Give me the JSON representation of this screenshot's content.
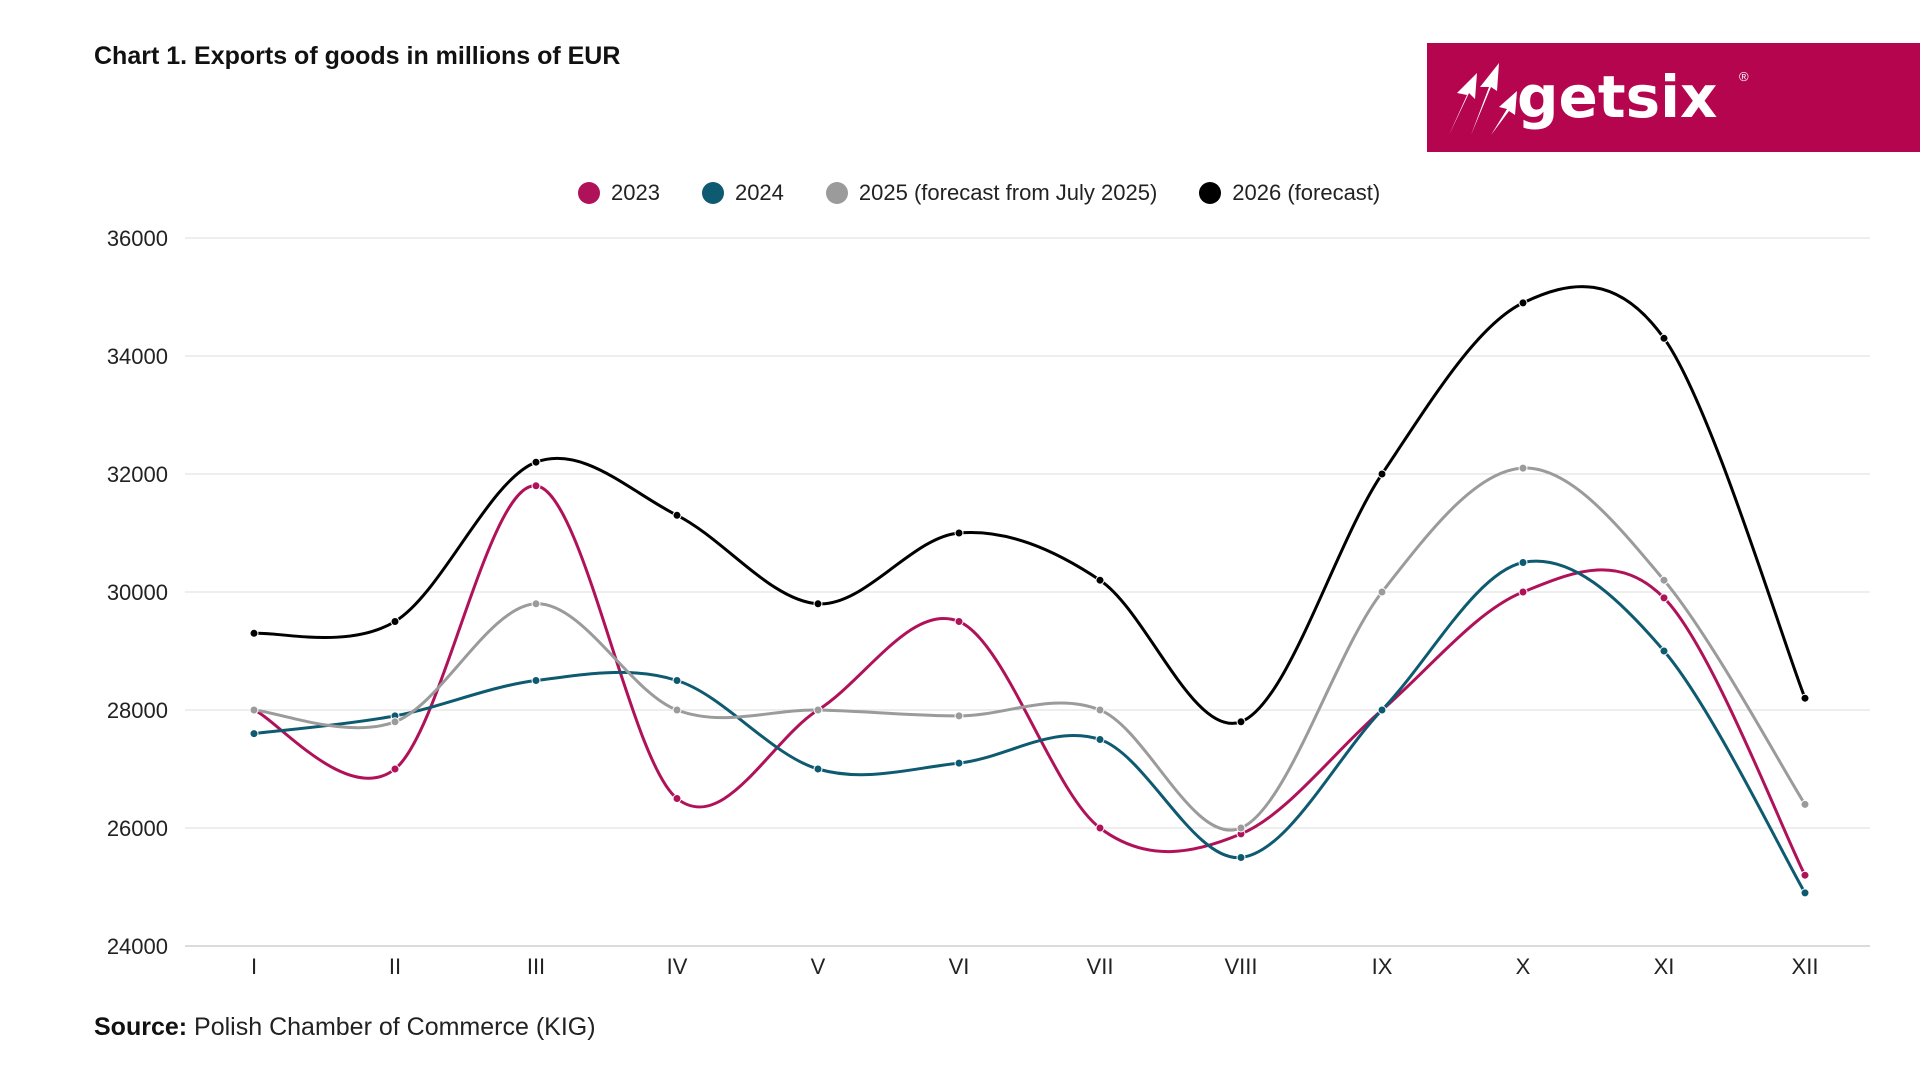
{
  "title": "Chart 1. Exports of goods in millions of EUR",
  "logo": {
    "text": "getsix",
    "reg_mark": "®",
    "bg_color": "#B5054F"
  },
  "source": {
    "label": "Source:",
    "text": " Polish Chamber of Commerce (KIG)"
  },
  "chart_data": {
    "type": "line",
    "title": "Chart 1. Exports of goods in millions of EUR",
    "xlabel": "",
    "ylabel": "",
    "ylim": [
      24000,
      36000
    ],
    "yticks": [
      24000,
      26000,
      28000,
      30000,
      32000,
      34000,
      36000
    ],
    "grid": true,
    "legend_position": "top",
    "categories": [
      "I",
      "II",
      "III",
      "IV",
      "V",
      "VI",
      "VII",
      "VIII",
      "IX",
      "X",
      "XI",
      "XII"
    ],
    "series": [
      {
        "name": "2023",
        "color": "#B0125A",
        "values": [
          28000,
          27000,
          31800,
          26500,
          28000,
          29500,
          26000,
          25900,
          28000,
          30000,
          29900,
          25200
        ]
      },
      {
        "name": "2024",
        "color": "#0E5A70",
        "values": [
          27600,
          27900,
          28500,
          28500,
          27000,
          27100,
          27500,
          25500,
          28000,
          30500,
          29000,
          24900
        ]
      },
      {
        "name": "2025 (forecast from July 2025)",
        "color": "#9B9B9B",
        "values": [
          28000,
          27800,
          29800,
          28000,
          28000,
          27900,
          28000,
          26000,
          30000,
          32100,
          30200,
          26400
        ]
      },
      {
        "name": "2026 (forecast)",
        "color": "#000000",
        "values": [
          29300,
          29500,
          32200,
          31300,
          29800,
          31000,
          30200,
          27800,
          32000,
          34900,
          34300,
          28200
        ]
      }
    ]
  }
}
